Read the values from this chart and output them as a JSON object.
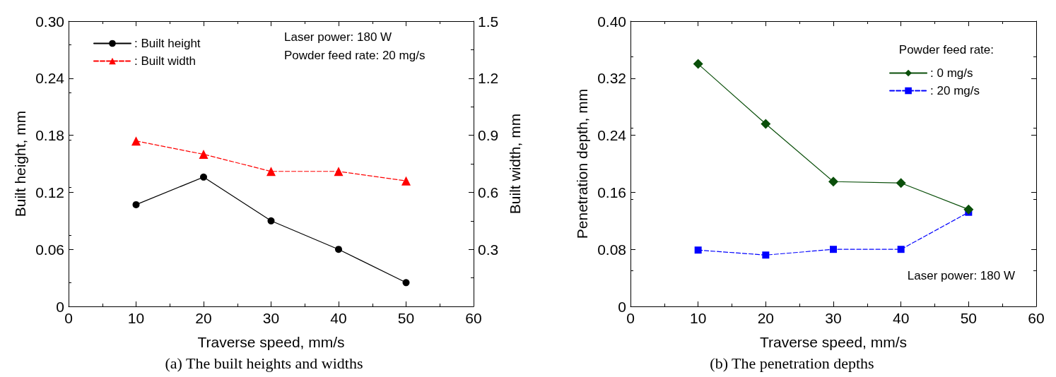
{
  "chart_data": [
    {
      "type": "line",
      "title": "(a) The built heights and widths",
      "xlabel": "Traverse speed, mm/s",
      "ylabel": "Built height, mm",
      "y2label": "Built width, mm",
      "annotations": [
        "Laser power: 180 W",
        "Powder feed rate: 20 mg/s"
      ],
      "x": [
        10,
        20,
        30,
        40,
        50
      ],
      "series": [
        {
          "name": ": Built height",
          "color": "#000000",
          "values": [
            0.107,
            0.136,
            0.09,
            0.06,
            0.025
          ],
          "marker": "circle",
          "line_style": "solid"
        },
        {
          "name": ": Built width",
          "color": "#ff0000",
          "values": [
            0.87,
            0.8,
            0.71,
            0.71,
            0.66
          ],
          "marker": "triangle",
          "line_style": "dashed",
          "axis": "y2"
        }
      ],
      "xlim": [
        0,
        60
      ],
      "xticks": [
        0,
        10,
        20,
        30,
        40,
        50,
        60
      ],
      "ylim": [
        0,
        0.3
      ],
      "yticks": [
        0,
        0.06,
        0.12,
        0.18,
        0.24,
        {
          "value": 0.3,
          "label": "0.30"
        }
      ],
      "y2lim": [
        0,
        1.5
      ],
      "y2ticks": [
        {
          "value": 0,
          "label": null
        },
        0.3,
        0.6,
        0.9,
        1.2,
        1.5
      ],
      "legend": "top left",
      "grid": false
    },
    {
      "type": "line",
      "title": "(b) The penetration depths",
      "xlabel": "Traverse speed, mm/s",
      "ylabel": "Penetration depth, mm",
      "legend_title": "Powder feed rate:",
      "annotations": [
        "Laser power: 180 W"
      ],
      "x": [
        10,
        20,
        30,
        40,
        50
      ],
      "series": [
        {
          "name": ": 0 mg/s",
          "color": "#0a4f0a",
          "values": [
            0.34,
            0.256,
            0.175,
            0.173,
            0.136
          ],
          "marker": "diamond",
          "line_style": "solid"
        },
        {
          "name": ": 20 mg/s",
          "color": "#0000ff",
          "values": [
            0.079,
            0.072,
            0.08,
            0.08,
            0.132
          ],
          "marker": "square",
          "line_style": "dashed"
        }
      ],
      "xlim": [
        0,
        60
      ],
      "xticks": [
        0,
        10,
        20,
        30,
        40,
        50,
        60
      ],
      "ylim": [
        0,
        0.4
      ],
      "yticks": [
        0,
        0.08,
        0.16,
        0.24,
        0.32,
        {
          "value": 0.4,
          "label": "0.40"
        }
      ],
      "legend": "top right",
      "grid": false
    }
  ]
}
